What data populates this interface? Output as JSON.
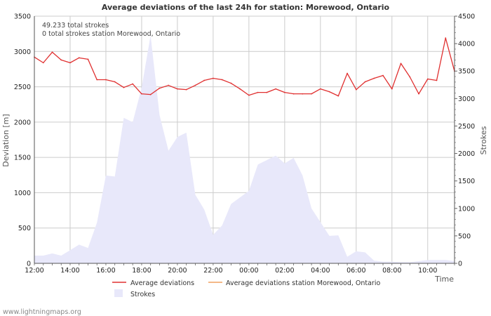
{
  "chart_data": {
    "type": "line",
    "title": "Average deviations of the last 24h for station: Morewood, Ontario",
    "xlabel": "Time",
    "ylabel": "Deviation  [m]",
    "y2label": "Strokes",
    "ylim": [
      0,
      3500
    ],
    "y2lim": [
      0,
      4500
    ],
    "yticks": [
      "0",
      "500",
      "1000",
      "1500",
      "2000",
      "2500",
      "3000",
      "3500"
    ],
    "y2ticks": [
      "0",
      "500",
      "1000",
      "1500",
      "2000",
      "2500",
      "3000",
      "3500",
      "4000",
      "4500"
    ],
    "xticks": [
      "12:00",
      "14:00",
      "16:00",
      "18:00",
      "20:00",
      "22:00",
      "00:00",
      "02:00",
      "04:00",
      "06:00",
      "08:00",
      "10:00"
    ],
    "grid": true,
    "annotations": [
      "49.233 total strokes",
      "0 total strokes station Morewood, Ontario"
    ],
    "legend": [
      {
        "label": "Average deviations",
        "color": "#e03030",
        "kind": "line"
      },
      {
        "label": "Average deviations station Morewood, Ontario",
        "color": "#f0a060",
        "kind": "line"
      },
      {
        "label": "Strokes",
        "color": "#e8e8fa",
        "kind": "area"
      }
    ],
    "series": [
      {
        "name": "Average deviations",
        "axis": "left",
        "color": "#e03030",
        "x": [
          0,
          0.5,
          1,
          1.5,
          2,
          2.5,
          3,
          3.5,
          4,
          4.5,
          5,
          5.5,
          6,
          6.5,
          7,
          7.5,
          8,
          8.5,
          9,
          9.5,
          10,
          10.5,
          11,
          11.5,
          12,
          12.5,
          13,
          13.5,
          14,
          14.5,
          15,
          15.5,
          16,
          16.5,
          17,
          17.5,
          18,
          18.5,
          19,
          19.5,
          20,
          20.5,
          21,
          21.5,
          22,
          22.5,
          23,
          23.5
        ],
        "values": [
          2920,
          2840,
          2990,
          2880,
          2840,
          2910,
          2890,
          2600,
          2600,
          2570,
          2490,
          2540,
          2400,
          2390,
          2480,
          2520,
          2470,
          2460,
          2520,
          2590,
          2620,
          2600,
          2550,
          2470,
          2380,
          2420,
          2420,
          2470,
          2420,
          2400,
          2400,
          2400,
          2470,
          2430,
          2370,
          2690,
          2460,
          2570,
          2620,
          2660,
          2470,
          2830,
          2640,
          2400,
          2610,
          2590,
          3190,
          2720
        ]
      },
      {
        "name": "Strokes",
        "axis": "right",
        "color": "#e8e8fa",
        "x": [
          0,
          0.5,
          1,
          1.5,
          2,
          2.5,
          3,
          3.5,
          4,
          4.5,
          5,
          5.5,
          6,
          6.5,
          7,
          7.5,
          8,
          8.5,
          9,
          9.5,
          10,
          10.5,
          11,
          11.5,
          12,
          12.5,
          13,
          13.5,
          14,
          14.5,
          15,
          15.5,
          16,
          16.5,
          17,
          17.5,
          18,
          18.5,
          19,
          19.5,
          20,
          20.5,
          21,
          21.5,
          22,
          22.5,
          23,
          23.5
        ],
        "values": [
          140,
          140,
          180,
          140,
          240,
          340,
          280,
          740,
          1600,
          1580,
          2650,
          2570,
          3200,
          4150,
          2700,
          2050,
          2300,
          2380,
          1250,
          980,
          520,
          690,
          1080,
          1200,
          1320,
          1800,
          1880,
          1960,
          1820,
          1920,
          1600,
          1000,
          750,
          500,
          510,
          120,
          220,
          200,
          50,
          30,
          30,
          20,
          20,
          40,
          60,
          60,
          60,
          40
        ]
      },
      {
        "name": "Average deviations station Morewood, Ontario",
        "axis": "left",
        "color": "#f0a060",
        "x": [],
        "values": []
      }
    ]
  },
  "footer": {
    "watermark": "www.lightningmaps.org"
  }
}
